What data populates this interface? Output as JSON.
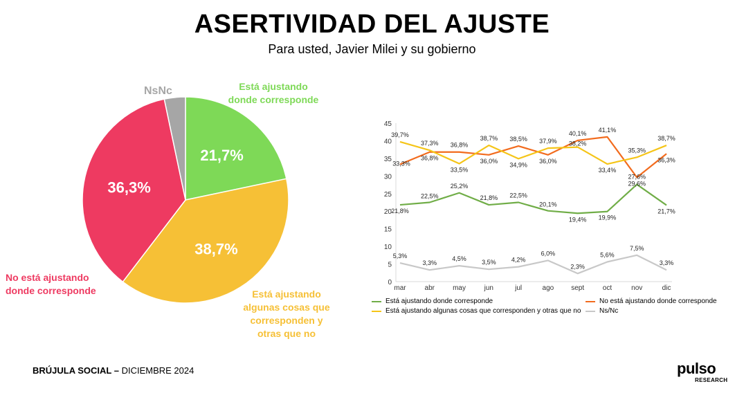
{
  "title": "ASERTIVIDAD DEL AJUSTE",
  "subtitle": "Para usted, Javier Milei y su gobierno",
  "footer": {
    "bold": "BRÚJULA SOCIAL –",
    "rest": " DICIEMBRE 2024"
  },
  "logo": {
    "main": "pulso",
    "sub": "RESEARCH"
  },
  "colors": {
    "green": "#7ed957",
    "yellow": "#f6c036",
    "red": "#ee3a61",
    "gray": "#a6a6a6",
    "orange": "#f26b1d",
    "line_yellow": "#f5c518"
  },
  "chart_data": [
    {
      "type": "pie",
      "slices": [
        {
          "name": "Está ajustando donde corresponde",
          "label_lines": [
            "Está ajustando",
            "donde corresponde"
          ],
          "value": 21.7,
          "value_label": "21,7%",
          "color": "#7ed957"
        },
        {
          "name": "Está ajustando algunas cosas que corresponden y otras que no",
          "label_lines": [
            "Está ajustando",
            "algunas cosas que",
            "corresponden y",
            "otras que no"
          ],
          "value": 38.7,
          "value_label": "38,7%",
          "color": "#f6c036"
        },
        {
          "name": "No está ajustando donde corresponde",
          "label_lines": [
            "No está ajustando",
            "donde corresponde"
          ],
          "value": 36.3,
          "value_label": "36,3%",
          "color": "#ee3a61"
        },
        {
          "name": "NsNc",
          "label_lines": [
            "NsNc"
          ],
          "value": 3.3,
          "value_label": "",
          "color": "#a6a6a6"
        }
      ]
    },
    {
      "type": "line",
      "categories": [
        "mar",
        "abr",
        "may",
        "jun",
        "jul",
        "ago",
        "sept",
        "oct",
        "nov",
        "dic"
      ],
      "ylim": [
        0,
        45
      ],
      "yticks": [
        "0",
        "5",
        "10",
        "15",
        "20",
        "25",
        "30",
        "35",
        "40",
        "45"
      ],
      "series": [
        {
          "name": "Está ajustando donde corresponde",
          "color": "#70ad47",
          "values": [
            21.8,
            22.5,
            25.2,
            21.8,
            22.5,
            20.1,
            19.4,
            19.9,
            27.6,
            21.7
          ],
          "labels": [
            "21,8%",
            "22,5%",
            "25,2%",
            "21,8%",
            "22,5%",
            "20,1%",
            "19,4%",
            "19,9%",
            "27,6%",
            "21,7%"
          ]
        },
        {
          "name": "No está ajustando donde corresponde",
          "color": "#f26b1d",
          "values": [
            33.3,
            36.8,
            36.8,
            36.0,
            38.5,
            36.0,
            40.1,
            41.1,
            29.6,
            36.3
          ],
          "labels": [
            "33,3%",
            "36,8%",
            "36,8%",
            "36,0%",
            "38,5%",
            "36,0%",
            "40,1%",
            "41,1%",
            "29,6%",
            "36,3%"
          ]
        },
        {
          "name": "Está ajustando algunas cosas que corresponden y otras que no",
          "color": "#f5c518",
          "values": [
            39.7,
            37.3,
            33.5,
            38.7,
            34.9,
            37.9,
            38.2,
            33.4,
            35.3,
            38.7
          ],
          "labels": [
            "39,7%",
            "37,3%",
            "33,5%",
            "38,7%",
            "34,9%",
            "37,9%",
            "38,2%",
            "33,4%",
            "35,3%",
            "38,7%"
          ]
        },
        {
          "name": "Ns/Nc",
          "color": "#c8c8c8",
          "values": [
            5.3,
            3.3,
            4.5,
            3.5,
            4.2,
            6.0,
            2.3,
            5.6,
            7.5,
            3.3
          ],
          "labels": [
            "5,3%",
            "3,3%",
            "4,5%",
            "3,5%",
            "4,2%",
            "6,0%",
            "2,3%",
            "5,6%",
            "7,5%",
            "3,3%"
          ]
        }
      ]
    }
  ]
}
